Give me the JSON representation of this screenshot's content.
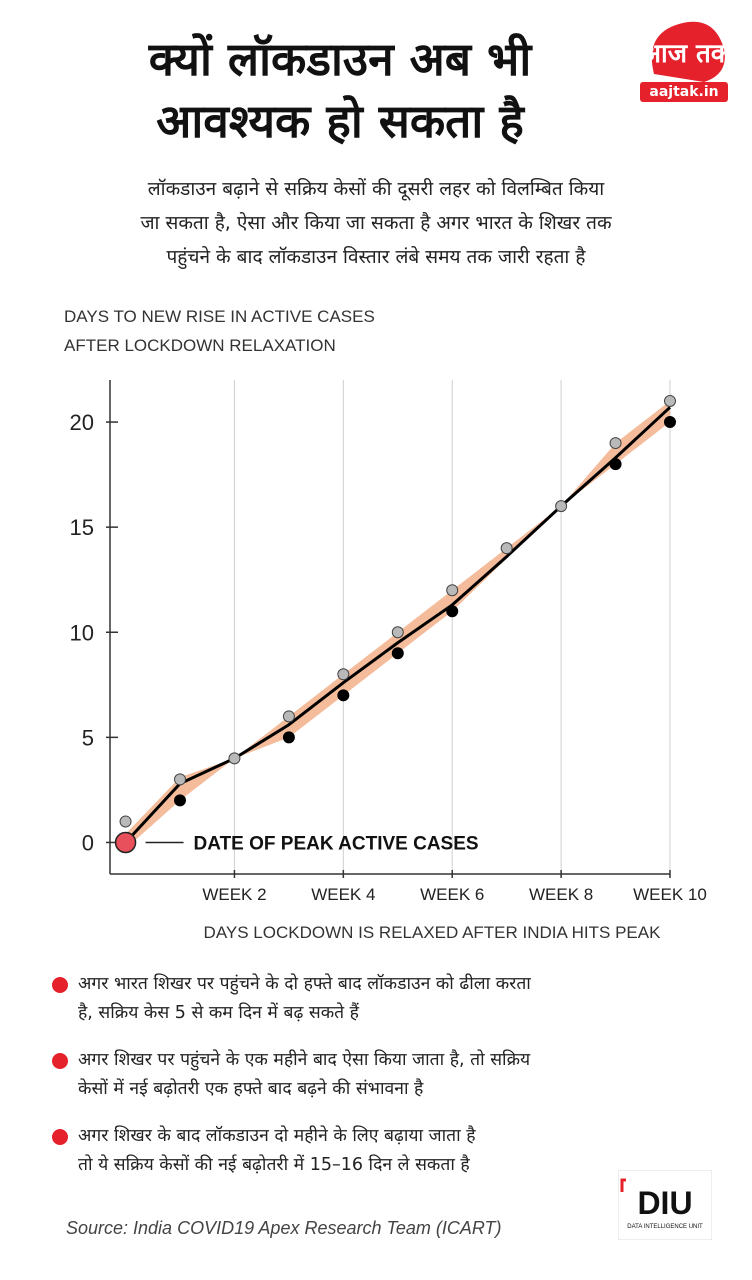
{
  "header": {
    "title_line1": "क्यों लॉकडाउन अब भी",
    "title_line2": "आवश्यक हो सकता है",
    "logo_text": "आज तक",
    "logo_site": "aajtak.in"
  },
  "subtitle": {
    "line1": "लॉकडाउन बढ़ाने से सक्रिय केसों की दूसरी लहर को विलम्बित किया",
    "line2": "जा सकता है, ऐसा और किया जा सकता है अगर भारत के शिखर तक",
    "line3": "पहुंचने के बाद लॉकडाउन विस्तार लंबे समय तक जारी रहता है"
  },
  "chart_data": {
    "type": "scatter",
    "ylabel_line1": "DAYS TO NEW RISE IN ACTIVE CASES",
    "ylabel_line2": "AFTER LOCKDOWN RELAXATION",
    "xlabel": "DAYS LOCKDOWN IS RELAXED AFTER INDIA HITS PEAK",
    "xlim": [
      -2,
      70
    ],
    "ylim": [
      -1.5,
      22
    ],
    "x_ticks": [
      {
        "value": 14,
        "label": "WEEK 2"
      },
      {
        "value": 28,
        "label": "WEEK 4"
      },
      {
        "value": 42,
        "label": "WEEK 6"
      },
      {
        "value": 56,
        "label": "WEEK 8"
      },
      {
        "value": 70,
        "label": "WEEK 10"
      }
    ],
    "y_ticks": [
      0,
      5,
      10,
      15,
      20
    ],
    "grid": "vertical",
    "peak_annotation": "DATE OF PEAK ACTIVE CASES",
    "peak_point": {
      "x": 0,
      "y": 0
    },
    "series": [
      {
        "color": "#b9b9b9",
        "points": [
          [
            0,
            1
          ],
          [
            7,
            3
          ],
          [
            14,
            4
          ],
          [
            21,
            6
          ],
          [
            28,
            8
          ],
          [
            35,
            10
          ],
          [
            42,
            12
          ],
          [
            49,
            14
          ],
          [
            56,
            16
          ],
          [
            63,
            19
          ],
          [
            70,
            21
          ]
        ]
      },
      {
        "color": "#000000",
        "points": [
          [
            7,
            2
          ],
          [
            21,
            5
          ],
          [
            28,
            7
          ],
          [
            35,
            9
          ],
          [
            42,
            11
          ],
          [
            63,
            18
          ],
          [
            70,
            20
          ]
        ]
      }
    ],
    "trend_line": [
      [
        0,
        0
      ],
      [
        7,
        2.8
      ],
      [
        14,
        4
      ],
      [
        21,
        5.6
      ],
      [
        28,
        7.6
      ],
      [
        35,
        9.5
      ],
      [
        42,
        11.3
      ],
      [
        49,
        13.6
      ],
      [
        56,
        16
      ],
      [
        63,
        18.3
      ],
      [
        70,
        20.7
      ]
    ],
    "band": {
      "upper": [
        [
          0,
          0.4
        ],
        [
          7,
          3.1
        ],
        [
          14,
          4
        ],
        [
          21,
          6
        ],
        [
          28,
          8
        ],
        [
          35,
          10
        ],
        [
          42,
          12
        ],
        [
          49,
          14
        ],
        [
          56,
          16
        ],
        [
          63,
          19
        ],
        [
          70,
          21
        ]
      ],
      "lower": [
        [
          0,
          -0.3
        ],
        [
          7,
          2
        ],
        [
          14,
          4
        ],
        [
          21,
          5
        ],
        [
          28,
          7
        ],
        [
          35,
          9
        ],
        [
          42,
          11
        ],
        [
          49,
          13.5
        ],
        [
          56,
          16
        ],
        [
          63,
          18
        ],
        [
          70,
          20
        ]
      ],
      "color": "#f2b08a"
    },
    "peak_color": "#e8505b"
  },
  "bullets": [
    {
      "line1": "अगर भारत शिखर पर पहुंचने के दो हफ्ते बाद लॉकडाउन को ढीला करता",
      "line2": "है, सक्रिय केस 5 से कम दिन में बढ़ सकते हैं"
    },
    {
      "line1": "अगर शिखर पर पहुंचने के एक महीने बाद ऐसा किया जाता है, तो सक्रिय",
      "line2": "केसों में नई बढ़ोतरी एक हफ्ते बाद बढ़ने की संभावना है"
    },
    {
      "line1": "अगर शिखर के बाद लॉकडाउन दो महीने के लिए बढ़ाया जाता है",
      "line2": "तो ये सक्रिय केसों की नई बढ़ोतरी में 15–16 दिन ले सकता है"
    }
  ],
  "footer": {
    "source": "Source: India COVID19 Apex Research Team (ICART)",
    "diu_text": "DIU",
    "diu_sub": "DATA INTELLIGENCE UNIT"
  },
  "colors": {
    "accent": "#e5212b"
  }
}
